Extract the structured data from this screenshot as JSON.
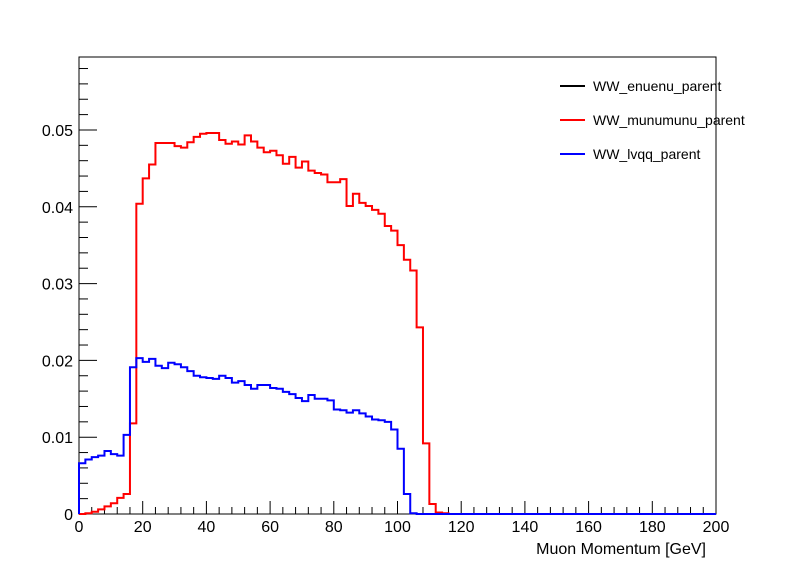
{
  "chart_data": {
    "type": "line",
    "step": true,
    "title": "",
    "xlabel": "Muon Momentum [GeV]",
    "ylabel": "",
    "xlim": [
      0,
      200
    ],
    "ylim": [
      0,
      0.0595
    ],
    "grid": false,
    "legend_position": "top-right",
    "bin_width": 2,
    "x_ticks": [
      0,
      20,
      40,
      60,
      80,
      100,
      120,
      140,
      160,
      180,
      200
    ],
    "x_tick_labels": [
      "0",
      "20",
      "40",
      "60",
      "80",
      "100",
      "120",
      "140",
      "160",
      "180",
      "200"
    ],
    "y_ticks": [
      0,
      0.01,
      0.02,
      0.03,
      0.04,
      0.05
    ],
    "y_tick_labels": [
      "0",
      "0.01",
      "0.02",
      "0.03",
      "0.04",
      "0.05"
    ],
    "series": [
      {
        "name": "WW_enuenu_parent",
        "color": "#000000",
        "values": []
      },
      {
        "name": "WW_munumunu_parent",
        "color": "#ff0000",
        "values": [
          0,
          0.0001,
          0.0003,
          0.0006,
          0.001,
          0.0014,
          0.0021,
          0.0026,
          0.0118,
          0.0404,
          0.0437,
          0.0455,
          0.0483,
          0.0483,
          0.0483,
          0.0479,
          0.0477,
          0.0484,
          0.0491,
          0.0495,
          0.0496,
          0.0496,
          0.0487,
          0.0482,
          0.0485,
          0.0481,
          0.0493,
          0.0485,
          0.0477,
          0.0471,
          0.0473,
          0.0467,
          0.0456,
          0.0465,
          0.0451,
          0.0459,
          0.0447,
          0.0444,
          0.0442,
          0.0432,
          0.0432,
          0.0436,
          0.0401,
          0.0417,
          0.0405,
          0.0401,
          0.0396,
          0.0391,
          0.0375,
          0.0369,
          0.035,
          0.0331,
          0.0317,
          0.0243,
          0.0092,
          0.0013,
          0.0002,
          0.0001
        ]
      },
      {
        "name": "WW_lvqq_parent",
        "color": "#0000ff",
        "values": [
          0.0066,
          0.0071,
          0.0074,
          0.0076,
          0.0082,
          0.0078,
          0.0076,
          0.0103,
          0.0191,
          0.0203,
          0.0198,
          0.0202,
          0.0193,
          0.019,
          0.0197,
          0.0195,
          0.0191,
          0.0186,
          0.018,
          0.0178,
          0.0177,
          0.0176,
          0.018,
          0.0177,
          0.0171,
          0.0173,
          0.0168,
          0.0163,
          0.0168,
          0.0168,
          0.0164,
          0.0163,
          0.0159,
          0.0156,
          0.0151,
          0.0147,
          0.0155,
          0.015,
          0.015,
          0.0148,
          0.0136,
          0.0135,
          0.0132,
          0.0135,
          0.0131,
          0.0127,
          0.0123,
          0.0122,
          0.012,
          0.011,
          0.0085,
          0.0026,
          0.0001,
          0
        ]
      }
    ]
  }
}
